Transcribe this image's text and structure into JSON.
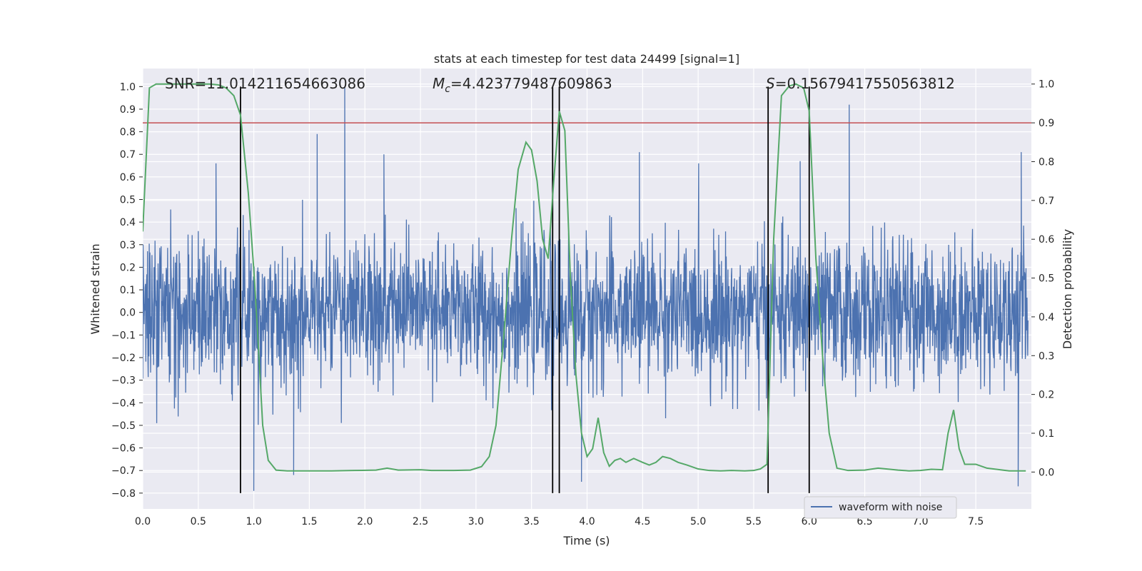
{
  "chart_data": {
    "type": "line",
    "title": "stats at each timestep for test data 24499 [signal=1]",
    "xlabel": "Time (s)",
    "ylabel": "Whitened strain",
    "ylabel_right": "Detection probability",
    "xlim": [
      0.0,
      8.0
    ],
    "ylim_left": [
      -0.87,
      1.08
    ],
    "ylim_right": [
      -0.095,
      1.04
    ],
    "x_ticks": [
      "0.0",
      "0.5",
      "1.0",
      "1.5",
      "2.0",
      "2.5",
      "3.0",
      "3.5",
      "4.0",
      "4.5",
      "5.0",
      "5.5",
      "6.0",
      "6.5",
      "7.0",
      "7.5"
    ],
    "y_ticks_left": [
      "-0.8",
      "-0.7",
      "-0.6",
      "-0.5",
      "-0.4",
      "-0.3",
      "-0.2",
      "-0.1",
      "0.0",
      "0.1",
      "0.2",
      "0.3",
      "0.4",
      "0.5",
      "0.6",
      "0.7",
      "0.8",
      "0.9",
      "1.0"
    ],
    "y_ticks_right": [
      "0.0",
      "0.1",
      "0.2",
      "0.3",
      "0.4",
      "0.5",
      "0.6",
      "0.7",
      "0.8",
      "0.9",
      "1.0"
    ],
    "annotations": {
      "snr": "SNR=11.014211654663086",
      "mc_symbol": "M",
      "mc_sub": "c",
      "mc_value": "=4.423779487609863",
      "s_symbol": "S",
      "s_value": "=0.15679417550563812"
    },
    "threshold_line": {
      "y_right": 0.9,
      "color": "#c44e52"
    },
    "vertical_lines_x": [
      0.88,
      3.69,
      3.75,
      5.63,
      6.0
    ],
    "vertical_line_range_left": [
      -0.8,
      1.0
    ],
    "series": [
      {
        "name": "waveform with noise",
        "color": "#4c72b0",
        "kind": "noise",
        "sigma": 0.155,
        "peaks": [
          {
            "x": 1.82,
            "y": 1.0
          },
          {
            "x": 1.57,
            "y": 0.79
          },
          {
            "x": 6.36,
            "y": 0.92
          },
          {
            "x": 2.17,
            "y": 0.7
          },
          {
            "x": 4.47,
            "y": 0.71
          },
          {
            "x": 7.91,
            "y": 0.71
          },
          {
            "x": 1.0,
            "y": -0.79
          },
          {
            "x": 3.95,
            "y": -0.75
          },
          {
            "x": 7.88,
            "y": -0.77
          },
          {
            "x": 1.36,
            "y": -0.72
          },
          {
            "x": 0.66,
            "y": 0.66
          },
          {
            "x": 5.92,
            "y": 0.67
          }
        ]
      },
      {
        "name": "detection probability",
        "color": "#55a868",
        "axis": "right",
        "x": [
          0.0,
          0.06,
          0.12,
          0.2,
          0.3,
          0.4,
          0.5,
          0.6,
          0.68,
          0.75,
          0.82,
          0.88,
          0.95,
          1.0,
          1.03,
          1.08,
          1.13,
          1.2,
          1.3,
          1.5,
          1.7,
          1.9,
          2.1,
          2.2,
          2.3,
          2.5,
          2.6,
          2.8,
          2.95,
          3.05,
          3.12,
          3.18,
          3.25,
          3.32,
          3.38,
          3.45,
          3.5,
          3.55,
          3.6,
          3.65,
          3.7,
          3.75,
          3.8,
          3.85,
          3.9,
          3.95,
          4.0,
          4.05,
          4.1,
          4.15,
          4.2,
          4.25,
          4.3,
          4.35,
          4.42,
          4.5,
          4.56,
          4.62,
          4.68,
          4.75,
          4.82,
          4.9,
          5.0,
          5.1,
          5.2,
          5.3,
          5.42,
          5.5,
          5.56,
          5.62,
          5.68,
          5.75,
          5.82,
          5.88,
          5.95,
          6.0,
          6.06,
          6.12,
          6.18,
          6.25,
          6.35,
          6.5,
          6.62,
          6.8,
          6.9,
          7.0,
          7.1,
          7.2,
          7.25,
          7.3,
          7.35,
          7.4,
          7.5,
          7.6,
          7.8,
          7.95
        ],
        "values": [
          0.62,
          0.99,
          1.0,
          1.0,
          1.0,
          1.0,
          1.0,
          1.0,
          0.998,
          0.99,
          0.97,
          0.92,
          0.72,
          0.52,
          0.38,
          0.12,
          0.03,
          0.005,
          0.003,
          0.003,
          0.003,
          0.004,
          0.005,
          0.01,
          0.005,
          0.006,
          0.004,
          0.004,
          0.005,
          0.014,
          0.04,
          0.12,
          0.35,
          0.6,
          0.78,
          0.85,
          0.83,
          0.75,
          0.6,
          0.55,
          0.75,
          0.93,
          0.88,
          0.5,
          0.25,
          0.1,
          0.04,
          0.06,
          0.14,
          0.05,
          0.015,
          0.03,
          0.035,
          0.025,
          0.035,
          0.025,
          0.018,
          0.025,
          0.04,
          0.035,
          0.025,
          0.018,
          0.008,
          0.004,
          0.003,
          0.004,
          0.003,
          0.004,
          0.008,
          0.02,
          0.6,
          0.97,
          0.995,
          1.0,
          0.99,
          0.93,
          0.55,
          0.3,
          0.1,
          0.01,
          0.004,
          0.005,
          0.01,
          0.005,
          0.003,
          0.004,
          0.007,
          0.006,
          0.1,
          0.16,
          0.06,
          0.02,
          0.02,
          0.01,
          0.003,
          0.003
        ]
      }
    ],
    "legend": {
      "position": "lower-right",
      "label": "waveform with noise"
    },
    "grid": true
  }
}
